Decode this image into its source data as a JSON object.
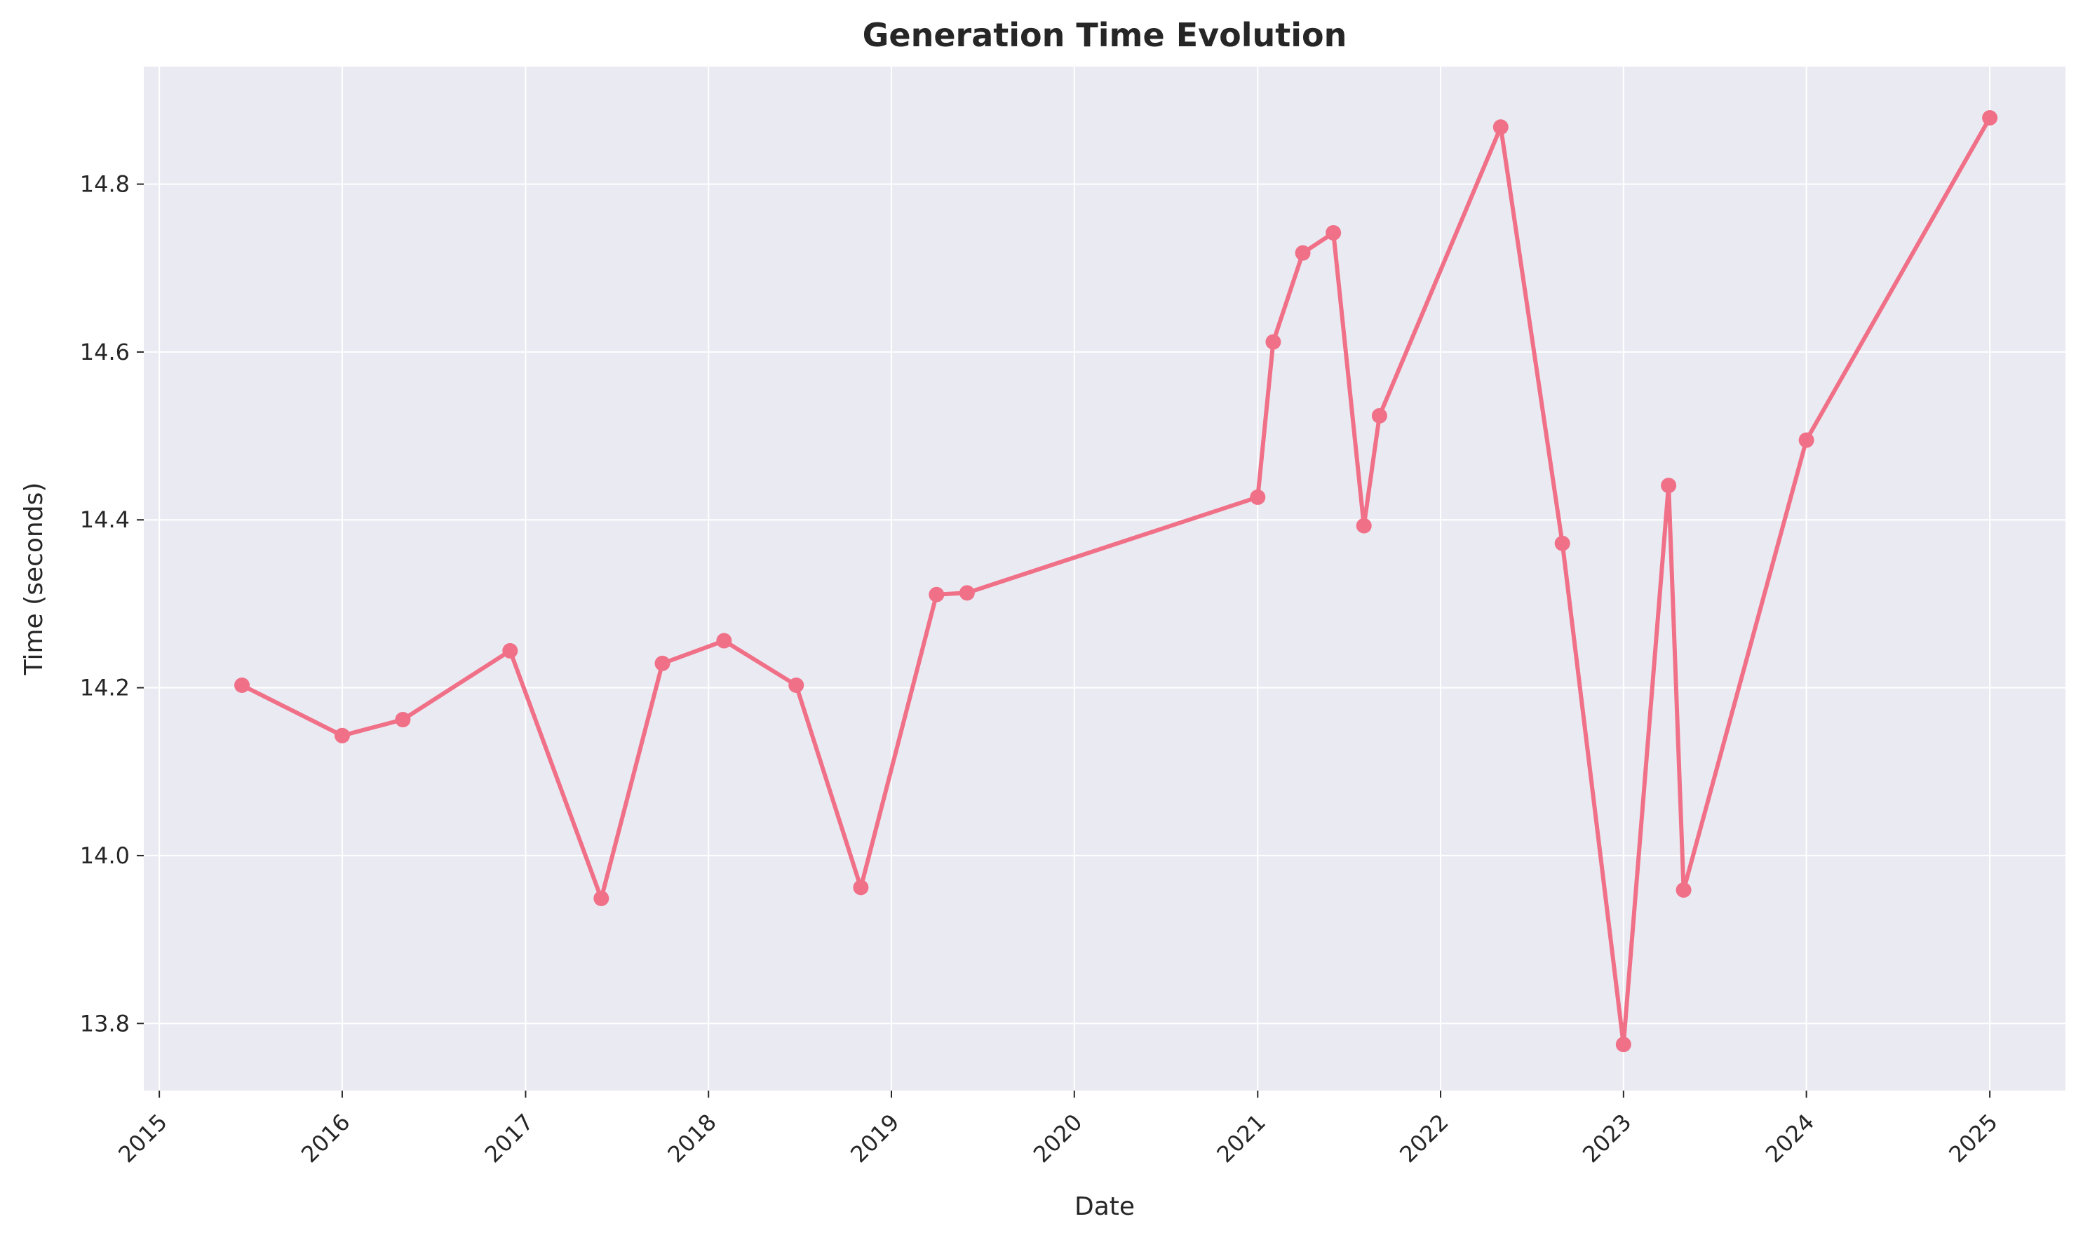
{
  "chart_data": {
    "type": "line",
    "title": "Generation Time Evolution",
    "xlabel": "Date",
    "ylabel": "Time (seconds)",
    "x_ticks": [
      "2015",
      "2016",
      "2017",
      "2018",
      "2019",
      "2020",
      "2021",
      "2022",
      "2023",
      "2024",
      "2025"
    ],
    "y_ticks": [
      "13.8",
      "14.0",
      "14.2",
      "14.4",
      "14.6",
      "14.8"
    ],
    "xlim": [
      "2014-12-01",
      "2025-06-01"
    ],
    "ylim": [
      13.72,
      14.94
    ],
    "grid": true,
    "legend": "none",
    "colors": {
      "line": "#f07088",
      "background": "#eaeaf2",
      "grid": "#ffffff",
      "text": "#262626"
    },
    "series": [
      {
        "x": [
          "2015-06-15",
          "2016-01-01",
          "2016-05-01",
          "2016-12-01",
          "2017-06-01",
          "2017-10-01",
          "2018-02-01",
          "2018-06-25",
          "2018-11-01",
          "2019-04-01",
          "2019-06-01",
          "2021-01-01",
          "2021-02-01",
          "2021-04-01",
          "2021-06-01",
          "2021-08-01",
          "2021-09-01",
          "2022-05-01",
          "2022-09-01",
          "2023-01-01",
          "2023-04-01",
          "2023-05-01",
          "2024-01-01",
          "2025-01-01"
        ],
        "y": [
          14.203,
          14.143,
          14.162,
          14.244,
          13.949,
          14.229,
          14.256,
          14.203,
          13.962,
          14.311,
          14.313,
          14.427,
          14.612,
          14.718,
          14.742,
          14.393,
          14.524,
          14.868,
          14.372,
          13.775,
          14.441,
          13.959,
          14.495,
          14.879
        ]
      }
    ]
  }
}
